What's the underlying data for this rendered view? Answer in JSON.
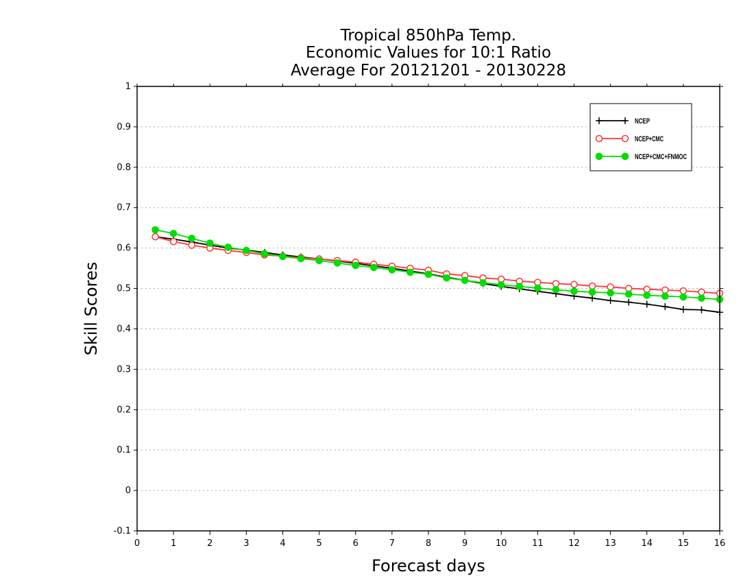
{
  "chart_data": {
    "type": "line",
    "title_lines": [
      "Tropical 850hPa Temp.",
      "Economic Values for 10:1 Ratio",
      "Average For 20121201 - 20130228"
    ],
    "xlabel": "Forecast days",
    "ylabel": "Skill Scores",
    "xlim": [
      0,
      16
    ],
    "ylim": [
      -0.1,
      1
    ],
    "xticks": [
      "0",
      "1",
      "2",
      "3",
      "4",
      "5",
      "6",
      "7",
      "8",
      "9",
      "10",
      "11",
      "12",
      "13",
      "14",
      "15",
      "16"
    ],
    "yticks": [
      "1",
      "0.9",
      "0.8",
      "0.7",
      "0.6",
      "0.5",
      "0.4",
      "0.3",
      "0.2",
      "0.1",
      "0",
      "-0.1"
    ],
    "grid": "horizontal dotted",
    "legend_position": "top-right",
    "x": [
      0.5,
      1,
      1.5,
      2,
      2.5,
      3,
      3.5,
      4,
      4.5,
      5,
      5.5,
      6,
      6.5,
      7,
      7.5,
      8,
      8.5,
      9,
      9.5,
      10,
      10.5,
      11,
      11.5,
      12,
      12.5,
      13,
      13.5,
      14,
      14.5,
      15,
      15.5,
      16
    ],
    "series": [
      {
        "name": "NCEP",
        "color": "#000000",
        "marker": "plus",
        "values": [
          0.628,
          0.622,
          0.615,
          0.607,
          0.6,
          0.595,
          0.589,
          0.583,
          0.578,
          0.573,
          0.568,
          0.562,
          0.556,
          0.55,
          0.543,
          0.536,
          0.528,
          0.52,
          0.512,
          0.505,
          0.499,
          0.493,
          0.487,
          0.481,
          0.476,
          0.47,
          0.466,
          0.461,
          0.455,
          0.448,
          0.447,
          0.441
        ]
      },
      {
        "name": "NCEP+CMC",
        "color": "#ff3333",
        "marker": "open-circle",
        "values": [
          0.628,
          0.616,
          0.607,
          0.6,
          0.594,
          0.589,
          0.583,
          0.58,
          0.576,
          0.573,
          0.569,
          0.565,
          0.56,
          0.555,
          0.55,
          0.545,
          0.536,
          0.532,
          0.526,
          0.523,
          0.518,
          0.515,
          0.512,
          0.51,
          0.506,
          0.504,
          0.5,
          0.498,
          0.496,
          0.494,
          0.491,
          0.488
        ]
      },
      {
        "name": "NCEP+CMC+FNMOC",
        "color": "#00dd00",
        "marker": "filled-circle",
        "values": [
          0.645,
          0.636,
          0.624,
          0.612,
          0.602,
          0.594,
          0.586,
          0.579,
          0.574,
          0.569,
          0.563,
          0.557,
          0.552,
          0.546,
          0.54,
          0.535,
          0.526,
          0.52,
          0.514,
          0.509,
          0.505,
          0.501,
          0.497,
          0.493,
          0.491,
          0.489,
          0.486,
          0.483,
          0.481,
          0.479,
          0.476,
          0.473
        ]
      }
    ]
  }
}
